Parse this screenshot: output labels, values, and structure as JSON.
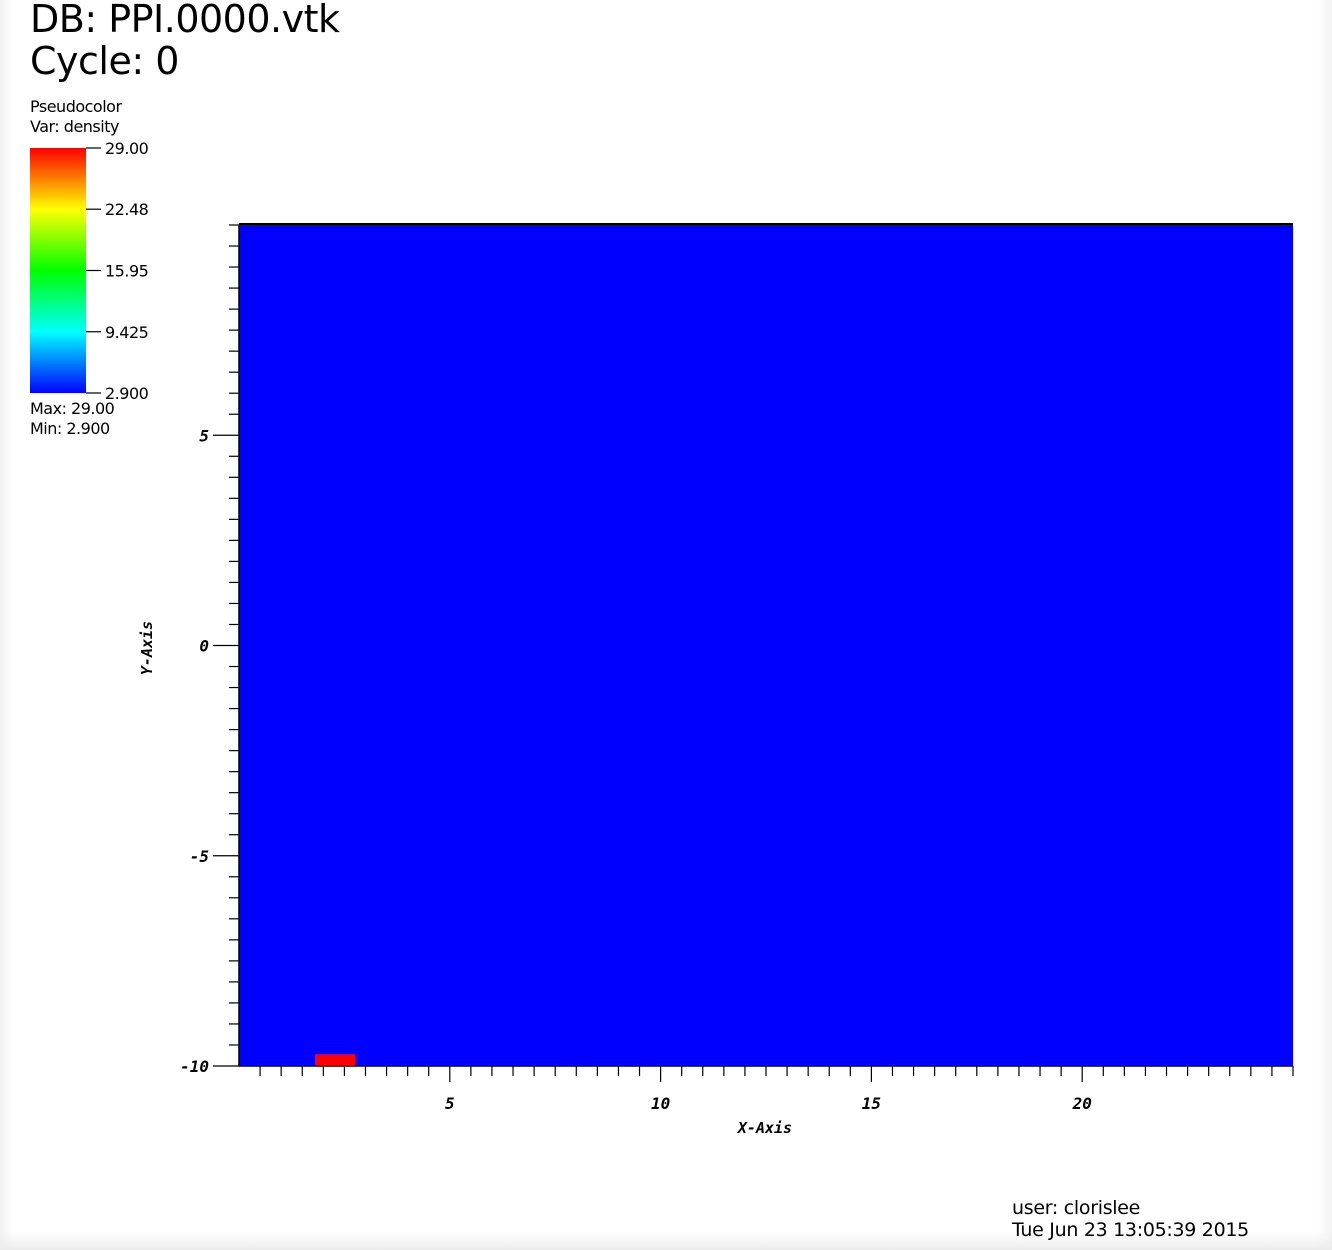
{
  "header": {
    "db_label": "DB: PPI.0000.vtk",
    "cycle_label": "Cycle: 0"
  },
  "legend": {
    "plot_type": "Pseudocolor",
    "variable": "Var: density",
    "max_label": "Max:  29.00",
    "min_label": "Min:  2.900",
    "colors": [
      "#ff0000",
      "#ffff00",
      "#00ff00",
      "#00ffff",
      "#0000ff"
    ]
  },
  "footer": {
    "user": "user: clorislee",
    "timestamp": "Tue Jun 23 13:05:39 2015"
  },
  "chart_data": {
    "type": "heatmap",
    "xlabel": "X-Axis",
    "ylabel": "Y-Axis",
    "xlim": [
      0,
      25
    ],
    "ylim": [
      -10,
      10
    ],
    "x_ticks": [
      5,
      10,
      15,
      20
    ],
    "x_tick_labels": [
      "5",
      "10",
      "15",
      "20"
    ],
    "x_minor_step": 0.5,
    "y_ticks": [
      5,
      0,
      -5,
      -10
    ],
    "y_tick_labels": [
      "5",
      "0",
      "-5",
      "-10"
    ],
    "y_minor_step": 0.5,
    "background_value": 2.9,
    "background_color": "#0000ff",
    "cells": [
      {
        "x": [
          1.8,
          2.75
        ],
        "y": [
          -10,
          -9.72
        ],
        "value": 29.0,
        "color": "#ff0000"
      }
    ],
    "colorbar": {
      "min": 2.9,
      "max": 29.0,
      "tick_values": [
        29.0,
        22.48,
        15.95,
        9.425,
        2.9
      ],
      "tick_labels": [
        "29.00",
        "22.48",
        "15.95",
        "9.425",
        "2.900"
      ]
    }
  }
}
